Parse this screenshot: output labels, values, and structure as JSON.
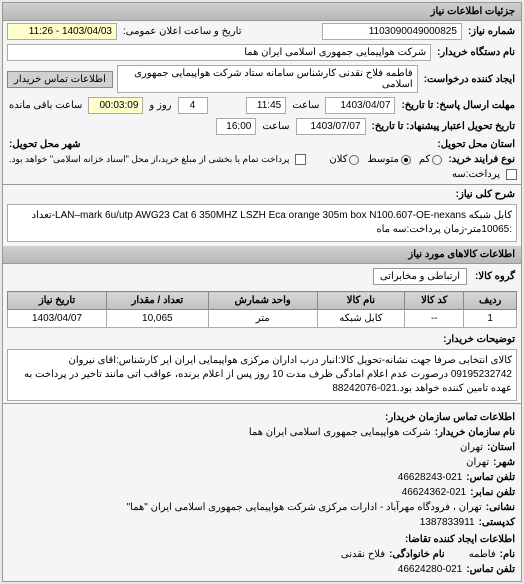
{
  "header": {
    "title": "جزئیات اطلاعات نیاز"
  },
  "basic": {
    "need_number_label": "شماره نیاز:",
    "need_number": "1103090049000825",
    "announce_label": "تاریخ و ساعت اعلان عمومی:",
    "announce_value": "1403/04/03 - 11:26",
    "buyer_label": "نام دستگاه خریدار:",
    "buyer_value": "شرکت هواپیمایی جمهوری اسلامی ایران هما",
    "requester_label": "ایجاد کننده درخواست:",
    "requester_value": "فاطمه فلاح نقدنی کارشناس سامانه ستاد شرکت هواپیمایی جمهوری اسلامی",
    "contact_btn": "اطلاعات تماس خریدار",
    "deadline_send_label": "مهلت ارسال پاسخ: تا تاریخ:",
    "deadline_send_date": "1403/04/07",
    "deadline_send_time_label": "ساعت",
    "deadline_send_time": "11:45",
    "days_label": "روز و",
    "days_value": "4",
    "remaining_label": "ساعت باقی مانده",
    "remaining_time": "00:03:09",
    "delivery_label": "تاریخ تحویل اعتبار پیشنهاد: تا تاریخ:",
    "delivery_date": "1403/07/07",
    "delivery_time_label": "ساعت",
    "delivery_time": "16:00",
    "location_label": "استان محل تحویل:",
    "city_label": "شهر محل تحویل:",
    "grains_label": "نوع فرایند خرید:",
    "grain_low": "کم",
    "grain_mid": "متوسط",
    "grain_high": "کلان",
    "partial_label": "پرداخت تمام یا بخشی از مبلغ خرید،از محل \"اسناد خزانه اسلامی\" خواهد بود.",
    "partial2_label": "پرداخت:سه"
  },
  "desc": {
    "title_label": "شرح کلی نیاز:",
    "text": "کابل شبکه LAN–mark 6u/utp AWG23 Cat 6 350MHZ LSZH Eca orange 305m box N100.607-OE-nexans-تعداد :10065متر-زمان پرداخت:سه ماه"
  },
  "category": {
    "title_label": "اطلاعات کالاهای مورد نیاز",
    "group_label": "گروه کالا:",
    "breadcrumb": "ارتباطی و مخابراتی"
  },
  "table": {
    "headers": [
      "ردیف",
      "کد کالا",
      "نام کالا",
      "واحد شمارش",
      "تعداد / مقدار",
      "تاریخ نیاز"
    ],
    "rows": [
      [
        "1",
        "--",
        "کابل شبکه",
        "متر",
        "10,065",
        "1403/04/07"
      ]
    ]
  },
  "notes": {
    "label": "توضیحات خریدار:",
    "text": "کالای انتخابی صرفا جهت نشانه-تحویل کالا:انبار درب اداران مرکزی هواپیمایی ایران ایر کارشناس:اقای نیروان 09195232742 درصورت عدم اعلام امادگی ظرف مدت 10 روز پس از اعلام برنده، عواقب اتی مانند تاخیر در پرداخت به عهده تامین کننده خواهد بود.021-88242076"
  },
  "org": {
    "section_label": "اطلاعات تماس سازمان خریدار:",
    "org_label": "نام سازمان خریدار:",
    "org_value": "شرکت هواپیمایی جمهوری اسلامی ایران هما",
    "province_label": "استان:",
    "province_value": "تهران",
    "city_label": "شهر:",
    "city_value": "تهران",
    "phone_label": "تلفن تماس:",
    "phone_value": "46628243-021",
    "fax_label": "تلفن نمابر:",
    "fax_value": "46624362-021",
    "address_label": "نشانی:",
    "address_value": "تهران ، فرودگاه مهرآباد - ادارات مرکزی شرکت هواپیمایی جمهوری اسلامی ایران \"هما\"",
    "postal_label": "کدپستی:",
    "postal_value": "1387833911",
    "creator_section": "اطلاعات ایجاد کننده تقاضا:",
    "name_label": "نام:",
    "name_value": "فاطمه",
    "family_label": "نام خانوادگی:",
    "family_value": "فلاح نقدنی",
    "creator_phone_label": "تلفن تماس:",
    "creator_phone_value": "46624280-021"
  }
}
